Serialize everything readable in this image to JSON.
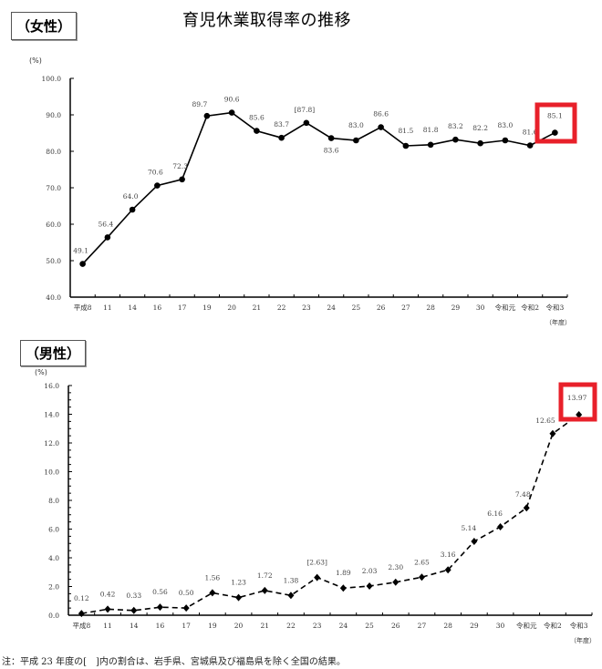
{
  "title": "育児休業取得率の推移",
  "note": "注：平成 23 年度の[　]内の割合は、岩手県、宮城県及び福島県を除く全国の結果。",
  "highlight_color": "#e8202a",
  "female": {
    "label": "（女性）",
    "unit": "(%)",
    "x_unit": "（年度）"
  },
  "male": {
    "label": "（男性）",
    "unit": "(%)",
    "x_unit": "（年度）"
  },
  "chart_data": [
    {
      "type": "line",
      "title": "育児休業取得率の推移（女性）",
      "xlabel": "（年度）",
      "ylabel": "(%)",
      "ylim": [
        40.0,
        100.0
      ],
      "yticks": [
        "40.0",
        "50.0",
        "60.0",
        "70.0",
        "80.0",
        "90.0",
        "100.0"
      ],
      "categories": [
        "平成8",
        "11",
        "14",
        "16",
        "17",
        "19",
        "20",
        "21",
        "22",
        "23",
        "24",
        "25",
        "26",
        "27",
        "28",
        "29",
        "30",
        "令和元",
        "令和2",
        "令和3"
      ],
      "values": [
        49.1,
        56.4,
        64.0,
        70.6,
        72.3,
        89.7,
        90.6,
        85.6,
        83.7,
        87.8,
        83.6,
        83.0,
        86.6,
        81.5,
        81.8,
        83.2,
        82.2,
        83.0,
        81.6,
        85.1
      ],
      "data_labels": [
        "49.1",
        "56.4",
        "64.0",
        "70.6",
        "72.3",
        "89.7",
        "90.6",
        "85.6",
        "83.7",
        "[87.8]",
        "83.6",
        "83.0",
        "86.6",
        "81.5",
        "81.8",
        "83.2",
        "82.2",
        "83.0",
        "81.6",
        "85.1"
      ],
      "line_style": "solid",
      "marker": "circle",
      "highlighted_point": "令和3",
      "grid": false
    },
    {
      "type": "line",
      "title": "育児休業取得率の推移（男性）",
      "xlabel": "（年度）",
      "ylabel": "(%)",
      "ylim": [
        0.0,
        16.0
      ],
      "yticks": [
        "0.0",
        "2.0",
        "4.0",
        "6.0",
        "8.0",
        "10.0",
        "12.0",
        "14.0",
        "16.0"
      ],
      "categories": [
        "平成8",
        "11",
        "14",
        "16",
        "17",
        "19",
        "20",
        "21",
        "22",
        "23",
        "24",
        "25",
        "26",
        "27",
        "28",
        "29",
        "30",
        "令和元",
        "令和2",
        "令和3"
      ],
      "values": [
        0.12,
        0.42,
        0.33,
        0.56,
        0.5,
        1.56,
        1.23,
        1.72,
        1.38,
        2.63,
        1.89,
        2.03,
        2.3,
        2.65,
        3.16,
        5.14,
        6.16,
        7.48,
        12.65,
        13.97
      ],
      "data_labels": [
        "0.12",
        "0.42",
        "0.33",
        "0.56",
        "0.50",
        "1.56",
        "1.23",
        "1.72",
        "1.38",
        "[2.63]",
        "1.89",
        "2.03",
        "2.30",
        "2.65",
        "3.16",
        "5.14",
        "6.16",
        "7.48",
        "12.65",
        "13.97"
      ],
      "line_style": "dashed",
      "marker": "diamond",
      "highlighted_point": "令和3",
      "grid": false
    }
  ]
}
